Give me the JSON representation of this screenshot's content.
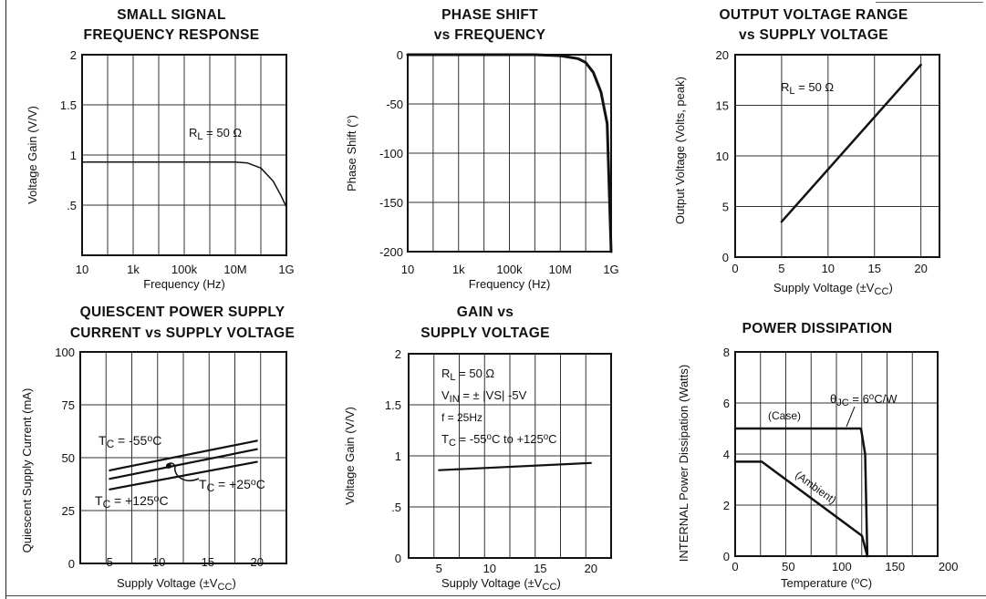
{
  "charts": [
    {
      "id": "p1",
      "title_lines": [
        "SMALL SIGNAL",
        "FREQUENCY RESPONSE"
      ],
      "xlabel": "Frequency (Hz)",
      "ylabel": "Voltage Gain (V/V)",
      "annotation": "R_L = 50 Ω"
    },
    {
      "id": "p2",
      "title_lines": [
        "PHASE SHIFT",
        "vs FREQUENCY"
      ],
      "xlabel": "Frequency (Hz)",
      "ylabel": "Phase Shift (°)"
    },
    {
      "id": "p3",
      "title_lines": [
        "OUTPUT VOLTAGE RANGE",
        "vs SUPPLY VOLTAGE"
      ],
      "xlabel": "Supply Voltage (±VCC)",
      "ylabel": "Output Voltage    (Volts, peak)",
      "annotation": "R_L = 50 Ω"
    },
    {
      "id": "p4",
      "title_lines": [
        "QUIESCENT POWER SUPPLY",
        "CURRENT vs SUPPLY VOLTAGE"
      ],
      "xlabel": "Supply Voltage (±VCC)",
      "ylabel": "Quiescent Supply Current (mA)",
      "annotations": [
        "TC = -55°C",
        "TC = +25°C",
        "TC = +125°C"
      ]
    },
    {
      "id": "p5",
      "title_lines": [
        "GAIN vs",
        "SUPPLY VOLTAGE"
      ],
      "xlabel": "Supply Voltage (±VCC)",
      "ylabel": "Voltage Gain (V/V)",
      "annotations": [
        "R_L = 50 Ω",
        "V_IN = ± |VS| -5V",
        "f = 25Hz",
        "TC = -55°C to +125°C"
      ]
    },
    {
      "id": "p6",
      "title_lines": [
        "POWER DISSIPATION"
      ],
      "xlabel": "Temperature (°C)",
      "ylabel": "INTERNAL Power Dissipation (Watts)",
      "annotations": [
        "θJC = 6°C/W",
        "(Case)",
        "(Ambient)"
      ]
    }
  ],
  "chart_data": [
    {
      "type": "line",
      "title": "SMALL SIGNAL FREQUENCY RESPONSE",
      "xlabel": "Frequency (Hz)",
      "ylabel": "Voltage Gain (V/V)",
      "x_scale": "log",
      "x_tick_labels": [
        "10",
        "1k",
        "100k",
        "10M",
        "1G"
      ],
      "y_tick_labels": [
        "2",
        "1.5",
        "1",
        ".5"
      ],
      "xlim": [
        10,
        1000000000
      ],
      "ylim": [
        0,
        2
      ],
      "grid": true,
      "series": [
        {
          "x": [
            10,
            1000000,
            10000000,
            30000000,
            100000000,
            300000000,
            600000000,
            1000000000
          ],
          "y": [
            0.93,
            0.93,
            0.93,
            0.92,
            0.87,
            0.74,
            0.6,
            0.48
          ]
        }
      ]
    },
    {
      "type": "line",
      "title": "PHASE SHIFT vs FREQUENCY",
      "xlabel": "Frequency (Hz)",
      "ylabel": "Phase Shift (°)",
      "x_scale": "log",
      "x_tick_labels": [
        "10",
        "1k",
        "100k",
        "10M",
        "1G"
      ],
      "y_tick_labels": [
        "0",
        "-50",
        "-100",
        "-150",
        "-200"
      ],
      "xlim": [
        10,
        1000000000
      ],
      "ylim": [
        -200,
        0
      ],
      "grid": true,
      "series": [
        {
          "x": [
            10,
            1000000,
            10000000,
            50000000,
            100000000,
            200000000,
            400000000,
            700000000,
            1000000000
          ],
          "y": [
            0,
            0,
            -1,
            -4,
            -8,
            -18,
            -38,
            -70,
            -200
          ]
        }
      ]
    },
    {
      "type": "line",
      "title": "OUTPUT VOLTAGE RANGE vs SUPPLY VOLTAGE",
      "xlabel": "Supply Voltage (±VCC)",
      "ylabel": "Output Voltage (Volts, peak)",
      "x_tick_labels": [
        "0",
        "5",
        "10",
        "15",
        "20"
      ],
      "y_tick_labels": [
        "20",
        "15",
        "10",
        "5",
        "0"
      ],
      "xlim": [
        0,
        22
      ],
      "ylim": [
        0,
        20
      ],
      "grid": true,
      "series": [
        {
          "x": [
            5,
            20
          ],
          "y": [
            3.5,
            19
          ]
        }
      ]
    },
    {
      "type": "line",
      "title": "QUIESCENT POWER SUPPLY CURRENT vs SUPPLY VOLTAGE",
      "xlabel": "Supply Voltage (±VCC)",
      "ylabel": "Quiescent Supply Current (mA)",
      "x_tick_labels": [
        "5",
        "10",
        "15",
        "20"
      ],
      "y_tick_labels": [
        "100",
        "75",
        "50",
        "25",
        "0"
      ],
      "xlim": [
        2,
        23
      ],
      "ylim": [
        0,
        100
      ],
      "grid": true,
      "series": [
        {
          "name": "TC = -55°C",
          "x": [
            5,
            20
          ],
          "y": [
            44,
            58
          ]
        },
        {
          "name": "TC = +25°C",
          "x": [
            5,
            20
          ],
          "y": [
            40,
            54
          ]
        },
        {
          "name": "TC = +125°C",
          "x": [
            5,
            20
          ],
          "y": [
            35,
            48
          ]
        }
      ]
    },
    {
      "type": "line",
      "title": "GAIN vs SUPPLY VOLTAGE",
      "xlabel": "Supply Voltage (±VCC)",
      "ylabel": "Voltage Gain (V/V)",
      "x_tick_labels": [
        "5",
        "10",
        "15",
        "20"
      ],
      "y_tick_labels": [
        "2",
        "1.5",
        "1",
        ".5",
        "0"
      ],
      "xlim": [
        2,
        22
      ],
      "ylim": [
        0,
        2
      ],
      "grid": true,
      "series": [
        {
          "x": [
            5,
            20
          ],
          "y": [
            0.86,
            0.93
          ]
        }
      ]
    },
    {
      "type": "line",
      "title": "POWER DISSIPATION",
      "xlabel": "Temperature (°C)",
      "ylabel": "INTERNAL Power Dissipation (Watts)",
      "x_tick_labels": [
        "0",
        "50",
        "100",
        "150",
        "200"
      ],
      "y_tick_labels": [
        "8",
        "6",
        "4",
        "2",
        "0"
      ],
      "xlim": [
        0,
        190
      ],
      "ylim": [
        0,
        8
      ],
      "grid": true,
      "series": [
        {
          "name": "(Case)",
          "x": [
            0,
            118,
            122,
            124
          ],
          "y": [
            5,
            5,
            4.0,
            0
          ]
        },
        {
          "name": "(Ambient)",
          "x": [
            0,
            25,
            119,
            124
          ],
          "y": [
            3.7,
            3.7,
            0.8,
            0
          ]
        }
      ]
    }
  ]
}
